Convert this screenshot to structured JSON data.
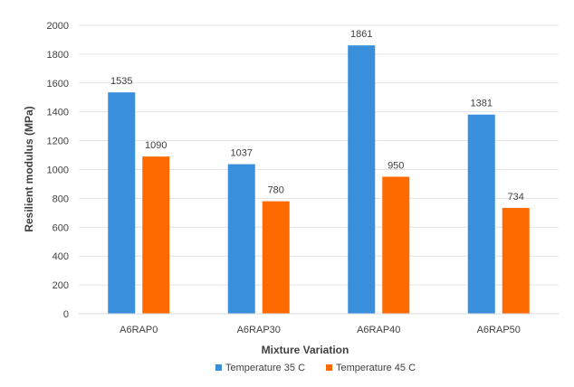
{
  "chart_data": {
    "type": "bar",
    "title": "",
    "xlabel": "Mixture Variation",
    "ylabel": "Resilient modulus (MPa)",
    "ylim": [
      0,
      2000
    ],
    "yticks": [
      0,
      200,
      400,
      600,
      800,
      1000,
      1200,
      1400,
      1600,
      1800,
      2000
    ],
    "grid": true,
    "legend_position": "bottom",
    "categories": [
      "A6RAP0",
      "A6RAP30",
      "A6RAP40",
      "A6RAP50"
    ],
    "series": [
      {
        "name": "Temperature 35 C",
        "color": "#3A8FDD",
        "values": [
          1535,
          1037,
          1861,
          1381
        ]
      },
      {
        "name": "Temperature 45 C",
        "color": "#FF6A00",
        "values": [
          1090,
          780,
          950,
          734
        ]
      }
    ]
  }
}
